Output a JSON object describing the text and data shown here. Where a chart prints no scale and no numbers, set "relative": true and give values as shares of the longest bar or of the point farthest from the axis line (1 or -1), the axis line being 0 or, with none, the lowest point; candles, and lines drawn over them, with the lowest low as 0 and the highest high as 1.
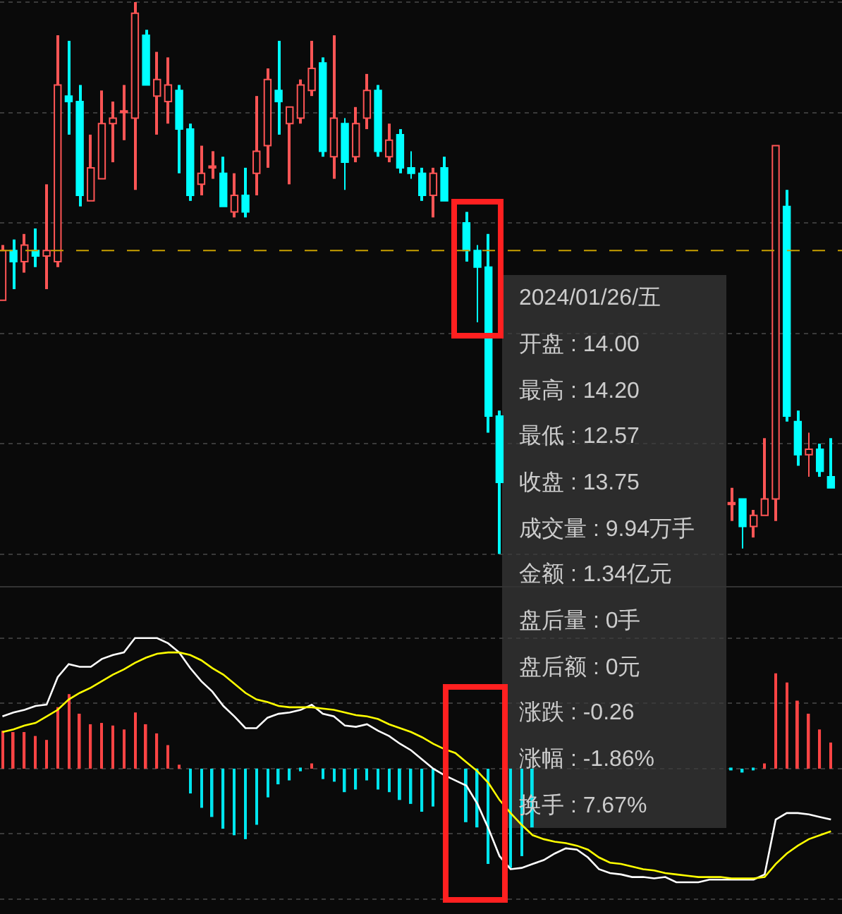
{
  "chart_data": [
    {
      "type": "candlestick",
      "relative": true,
      "grid": true,
      "categories": [
        null,
        null,
        null,
        null,
        null,
        null,
        null,
        null,
        null,
        null,
        null,
        null,
        null,
        null,
        null,
        null,
        null,
        null,
        null,
        null,
        null,
        null,
        null,
        null,
        null,
        null,
        null,
        null,
        null,
        null,
        null,
        null,
        null,
        null,
        null,
        null,
        null,
        null,
        null,
        null,
        null,
        null,
        null,
        null,
        null,
        null,
        null,
        null,
        null,
        null,
        null,
        null,
        null,
        null,
        null,
        null,
        null,
        null,
        null,
        null,
        null,
        null,
        null,
        null,
        null,
        null,
        null,
        null,
        null,
        null,
        null,
        null,
        null,
        null,
        null,
        null
      ],
      "colors": [
        "#ff5555",
        "#00ffff",
        "#ff5555",
        "#00ffff",
        "#ff5555",
        "#ff5555",
        "#00ffff",
        "#00ffff",
        "#ff5555",
        "#ff5555",
        "#ff5555",
        "#ff5555",
        "#ff5555",
        "#00ffff",
        "#ff5555",
        "#ff5555",
        "#00ffff",
        "#00ffff",
        "#ff5555",
        "#ff5555",
        "#00ffff",
        "#ff5555",
        "#00ffff",
        "#ff5555",
        "#ff5555",
        "#00ffff",
        "#ff5555",
        "#ff5555",
        "#ff5555",
        "#00ffff",
        "#ff5555",
        "#00ffff",
        "#ff5555",
        "#ff5555",
        "#00ffff",
        "#ff5555",
        "#00ffff",
        "#00ffff",
        "#00ffff",
        "#ff5555",
        "#00ffff",
        null,
        "#00ffff",
        "#00ffff",
        "#00ffff",
        "#00ffff",
        null,
        null,
        null,
        null,
        null,
        null,
        null,
        null,
        null,
        null,
        null,
        null,
        null,
        null,
        null,
        null,
        null,
        null,
        null,
        null,
        "#ff5555",
        "#00ffff",
        "#ff5555",
        "#ff5555",
        "#ff5555",
        "#00ffff",
        "#00ffff",
        "#ff5555",
        "#00ffff",
        "#00ffff"
      ],
      "ohlc": [
        [
          0.46,
          0.56,
          0.46,
          0.55
        ],
        [
          0.55,
          0.57,
          0.48,
          0.53
        ],
        [
          0.53,
          0.58,
          0.51,
          0.56
        ],
        [
          0.55,
          0.59,
          0.52,
          0.54
        ],
        [
          0.54,
          0.67,
          0.48,
          0.55
        ],
        [
          0.53,
          0.94,
          0.52,
          0.85
        ],
        [
          0.83,
          0.93,
          0.76,
          0.82
        ],
        [
          0.82,
          0.85,
          0.63,
          0.65
        ],
        [
          0.64,
          0.76,
          0.64,
          0.7
        ],
        [
          0.68,
          0.84,
          0.68,
          0.78
        ],
        [
          0.78,
          0.82,
          0.71,
          0.79
        ],
        [
          0.8,
          0.85,
          0.75,
          0.8
        ],
        [
          0.79,
          1.0,
          0.66,
          0.98
        ],
        [
          0.94,
          0.95,
          0.85,
          0.85
        ],
        [
          0.83,
          0.91,
          0.76,
          0.86
        ],
        [
          0.82,
          0.9,
          0.78,
          0.85
        ],
        [
          0.84,
          0.85,
          0.69,
          0.77
        ],
        [
          0.77,
          0.78,
          0.64,
          0.65
        ],
        [
          0.67,
          0.74,
          0.65,
          0.69
        ],
        [
          0.7,
          0.73,
          0.68,
          0.7
        ],
        [
          0.69,
          0.72,
          0.63,
          0.63
        ],
        [
          0.62,
          0.69,
          0.61,
          0.65
        ],
        [
          0.65,
          0.7,
          0.61,
          0.62
        ],
        [
          0.69,
          0.83,
          0.65,
          0.73
        ],
        [
          0.74,
          0.88,
          0.7,
          0.86
        ],
        [
          0.84,
          0.93,
          0.76,
          0.82
        ],
        [
          0.78,
          0.81,
          0.67,
          0.81
        ],
        [
          0.79,
          0.86,
          0.78,
          0.85
        ],
        [
          0.84,
          0.93,
          0.83,
          0.88
        ],
        [
          0.89,
          0.9,
          0.72,
          0.73
        ],
        [
          0.72,
          0.94,
          0.68,
          0.79
        ],
        [
          0.78,
          0.79,
          0.66,
          0.71
        ],
        [
          0.72,
          0.81,
          0.71,
          0.78
        ],
        [
          0.79,
          0.87,
          0.77,
          0.84
        ],
        [
          0.84,
          0.85,
          0.72,
          0.73
        ],
        [
          0.72,
          0.78,
          0.71,
          0.75
        ],
        [
          0.76,
          0.77,
          0.69,
          0.7
        ],
        [
          0.7,
          0.73,
          0.68,
          0.69
        ],
        [
          0.69,
          0.7,
          0.64,
          0.65
        ],
        [
          0.65,
          0.7,
          0.61,
          0.69
        ],
        [
          0.7,
          0.72,
          0.64,
          0.64
        ],
        null,
        [
          0.6,
          0.62,
          0.53,
          0.55
        ],
        [
          0.55,
          0.56,
          0.42,
          0.52
        ],
        [
          0.52,
          0.58,
          0.22,
          0.25
        ],
        [
          0.25,
          0.26,
          0.0,
          0.13
        ],
        null,
        null,
        null,
        null,
        null,
        null,
        null,
        null,
        null,
        null,
        null,
        null,
        null,
        null,
        null,
        null,
        null,
        null,
        null,
        null,
        [
          0.09,
          0.12,
          0.06,
          0.09
        ],
        [
          0.1,
          0.1,
          0.01,
          0.05
        ],
        [
          0.05,
          0.08,
          0.03,
          0.07
        ],
        [
          0.07,
          0.21,
          0.07,
          0.1
        ],
        [
          0.1,
          0.74,
          0.06,
          0.74
        ],
        [
          0.63,
          0.66,
          0.24,
          0.25
        ],
        [
          0.24,
          0.26,
          0.16,
          0.18
        ],
        [
          0.18,
          0.22,
          0.14,
          0.19
        ],
        [
          0.19,
          0.2,
          0.14,
          0.15
        ],
        [
          0.14,
          0.21,
          0.12,
          0.12
        ]
      ],
      "ref_lines": [
        {
          "axis": "y",
          "value": 0.55,
          "color": "#c8a000",
          "line_style": "dashed"
        }
      ],
      "annotations": [
        "2024/01/26/五",
        "开盘 : 14.00",
        "最高 : 14.20",
        "最低 : 12.57",
        "收盘 : 13.75",
        "成交量 : 9.94万手",
        "金额 : 1.34亿元",
        "盘后量 : 0手",
        "盘后额 : 0元",
        "涨跌 : -0.26",
        "涨幅 : -1.86%",
        "换手 : 7.67%"
      ]
    },
    {
      "type": "bar",
      "relative": true,
      "grid": true,
      "categories": [
        null,
        null,
        null,
        null,
        null,
        null,
        null,
        null,
        null,
        null,
        null,
        null,
        null,
        null,
        null,
        null,
        null,
        null,
        null,
        null,
        null,
        null,
        null,
        null,
        null,
        null,
        null,
        null,
        null,
        null,
        null,
        null,
        null,
        null,
        null,
        null,
        null,
        null,
        null,
        null,
        null,
        null,
        null,
        null,
        null,
        null,
        null,
        null,
        null,
        null,
        null,
        null,
        null,
        null,
        null,
        null,
        null,
        null,
        null,
        null,
        null,
        null,
        null,
        null,
        null,
        null,
        null,
        null,
        null,
        null,
        null,
        null,
        null,
        null,
        null,
        null
      ],
      "series": [
        {
          "type": "bar",
          "values": [
            0.29,
            0.28,
            0.28,
            0.25,
            0.22,
            0.47,
            0.57,
            0.42,
            0.34,
            0.35,
            0.33,
            0.3,
            0.43,
            0.34,
            0.27,
            0.18,
            0.03,
            -0.19,
            -0.3,
            -0.37,
            -0.46,
            -0.51,
            -0.54,
            -0.43,
            -0.22,
            -0.12,
            -0.09,
            -0.02,
            0.04,
            -0.08,
            -0.1,
            -0.18,
            -0.16,
            -0.09,
            -0.16,
            -0.18,
            -0.24,
            -0.27,
            -0.33,
            -0.29,
            null,
            null,
            -0.41,
            -0.45,
            -0.73,
            null,
            -0.76,
            -0.67,
            -0.45,
            null,
            null,
            null,
            null,
            null,
            null,
            null,
            null,
            null,
            null,
            null,
            null,
            null,
            null,
            null,
            null,
            null,
            -0.01,
            -0.03,
            -0.01,
            0.04,
            0.73,
            0.66,
            0.52,
            0.42,
            0.3,
            0.2
          ],
          "colors": [
            "#ff4444",
            "#ff4444",
            "#ff4444",
            "#ff4444",
            "#ff4444",
            "#ff4444",
            "#ff4444",
            "#ff4444",
            "#ff4444",
            "#ff4444",
            "#ff4444",
            "#ff4444",
            "#ff4444",
            "#ff4444",
            "#ff4444",
            "#ff4444",
            "#ff4444",
            "#00e5ee",
            "#00e5ee",
            "#00e5ee",
            "#00e5ee",
            "#00e5ee",
            "#00e5ee",
            "#00e5ee",
            "#00e5ee",
            "#00e5ee",
            "#00e5ee",
            "#00e5ee",
            "#ff4444",
            "#00e5ee",
            "#00e5ee",
            "#00e5ee",
            "#00e5ee",
            "#00e5ee",
            "#00e5ee",
            "#00e5ee",
            "#00e5ee",
            "#00e5ee",
            "#00e5ee",
            "#00e5ee",
            null,
            null,
            "#00e5ee",
            "#00e5ee",
            "#00e5ee",
            null,
            "#00e5ee",
            "#00e5ee",
            "#00e5ee",
            null,
            null,
            null,
            null,
            null,
            null,
            null,
            null,
            null,
            null,
            null,
            null,
            null,
            null,
            null,
            null,
            null,
            "#00e5ee",
            "#00e5ee",
            "#00e5ee",
            "#ff4444",
            "#ff4444",
            "#ff4444",
            "#ff4444",
            "#ff4444",
            "#ff4444",
            "#ff4444"
          ]
        },
        {
          "type": "line",
          "color": "#ffffff",
          "values": [
            0.4,
            0.43,
            0.45,
            0.48,
            0.49,
            0.7,
            0.8,
            0.78,
            0.78,
            0.84,
            0.87,
            0.89,
            1.0,
            1.0,
            1.0,
            0.96,
            0.89,
            0.77,
            0.67,
            0.59,
            0.48,
            0.4,
            0.31,
            0.31,
            0.39,
            0.42,
            0.43,
            0.45,
            0.49,
            0.42,
            0.4,
            0.33,
            0.32,
            0.34,
            0.29,
            0.25,
            0.19,
            0.14,
            0.07,
            0.0,
            -0.05,
            -0.09,
            -0.13,
            -0.27,
            -0.46,
            -0.67,
            -0.77,
            -0.76,
            -0.73,
            -0.7,
            -0.65,
            -0.61,
            -0.62,
            -0.68,
            -0.77,
            -0.8,
            -0.81,
            -0.83,
            -0.83,
            -0.84,
            -0.83,
            -0.87,
            -0.87,
            -0.87,
            -0.85,
            -0.85,
            -0.85,
            -0.85,
            -0.85,
            -0.81,
            -0.39,
            -0.34,
            -0.34,
            -0.35,
            -0.37,
            -0.39
          ]
        },
        {
          "type": "line",
          "color": "#ffff00",
          "values": [
            0.28,
            0.3,
            0.33,
            0.35,
            0.4,
            0.45,
            0.53,
            0.58,
            0.62,
            0.67,
            0.72,
            0.76,
            0.81,
            0.85,
            0.88,
            0.89,
            0.89,
            0.87,
            0.83,
            0.77,
            0.72,
            0.65,
            0.58,
            0.53,
            0.51,
            0.48,
            0.47,
            0.47,
            0.47,
            0.46,
            0.45,
            0.43,
            0.41,
            0.4,
            0.38,
            0.34,
            0.31,
            0.28,
            0.24,
            0.19,
            0.15,
            0.12,
            0.05,
            -0.02,
            -0.11,
            -0.24,
            -0.34,
            -0.43,
            -0.51,
            -0.54,
            -0.56,
            -0.57,
            -0.59,
            -0.62,
            -0.68,
            -0.72,
            -0.73,
            -0.75,
            -0.77,
            -0.78,
            -0.8,
            -0.81,
            -0.82,
            -0.83,
            -0.83,
            -0.83,
            -0.84,
            -0.84,
            -0.84,
            -0.83,
            -0.73,
            -0.65,
            -0.59,
            -0.54,
            -0.51,
            -0.48
          ]
        }
      ]
    }
  ]
}
